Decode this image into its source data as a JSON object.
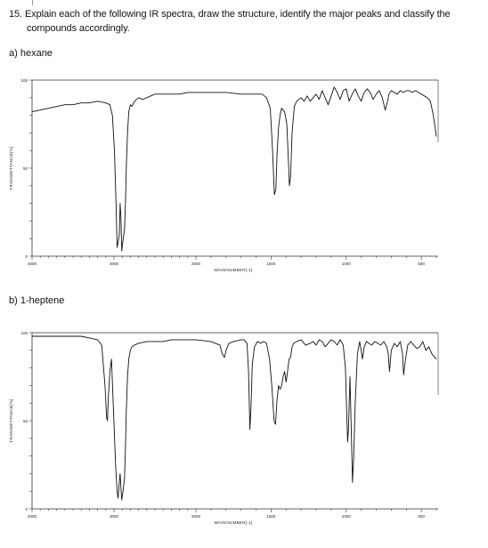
{
  "question": {
    "line1": "15. Explain each of the following IR spectra, draw the structure, identify the major peaks and classify the",
    "line2": "compounds accordingly."
  },
  "parts": [
    {
      "label": "a)   hexane",
      "chart_data": {
        "type": "line",
        "title": "",
        "xlabel": "WAVENUMBER[-1]",
        "ylabel": "TRANSMITTANCE[%]",
        "xlim": [
          4000,
          400
        ],
        "ylim": [
          0,
          100
        ],
        "x_ticks": [
          "4000",
          "3000",
          "2000",
          "1500",
          "1000",
          "500"
        ],
        "y_ticks": [
          "100",
          "50",
          "0"
        ],
        "x": [
          4000,
          3900,
          3800,
          3700,
          3600,
          3500,
          3400,
          3300,
          3200,
          3100,
          3050,
          3020,
          2995,
          2975,
          2962,
          2950,
          2935,
          2925,
          2915,
          2905,
          2890,
          2872,
          2860,
          2850,
          2835,
          2820,
          2800,
          2780,
          2750,
          2700,
          2650,
          2600,
          2550,
          2500,
          2400,
          2300,
          2200,
          2100,
          2000,
          1900,
          1800,
          1700,
          1650,
          1600,
          1560,
          1530,
          1505,
          1490,
          1478,
          1468,
          1460,
          1450,
          1440,
          1430,
          1410,
          1395,
          1385,
          1378,
          1370,
          1360,
          1345,
          1330,
          1300,
          1280,
          1260,
          1240,
          1220,
          1200,
          1180,
          1160,
          1140,
          1120,
          1100,
          1080,
          1060,
          1040,
          1020,
          1000,
          980,
          960,
          940,
          920,
          900,
          880,
          860,
          840,
          820,
          800,
          780,
          760,
          740,
          725,
          715,
          700,
          680,
          660,
          640,
          620,
          600,
          580,
          560,
          540,
          520,
          500,
          480,
          460,
          440,
          420,
          400
        ],
        "y": [
          82,
          83,
          84,
          85,
          86,
          86,
          87,
          87,
          88,
          87,
          86,
          80,
          60,
          30,
          5,
          8,
          12,
          30,
          22,
          3,
          9,
          15,
          30,
          50,
          70,
          82,
          86,
          85,
          88,
          90,
          89,
          90,
          91,
          92,
          92,
          92,
          92,
          93,
          93,
          93,
          93,
          92,
          92,
          92,
          92,
          90,
          84,
          60,
          35,
          38,
          58,
          73,
          80,
          84,
          82,
          75,
          55,
          40,
          45,
          70,
          85,
          88,
          90,
          88,
          91,
          88,
          90,
          92,
          89,
          94,
          90,
          86,
          91,
          96,
          93,
          89,
          94,
          95,
          88,
          92,
          95,
          91,
          88,
          93,
          95,
          93,
          89,
          92,
          94,
          90,
          83,
          88,
          92,
          94,
          93,
          92,
          94,
          93,
          94,
          94,
          93,
          94,
          93,
          92,
          91,
          90,
          88,
          80,
          68
        ]
      }
    },
    {
      "label": "b)   1-heptene",
      "chart_data": {
        "type": "line",
        "title": "",
        "xlabel": "WAVENUMBER[-1]",
        "ylabel": "TRANSMITTANCE[%]",
        "xlim": [
          4000,
          400
        ],
        "ylim": [
          0,
          100
        ],
        "x_ticks": [
          "4000",
          "3000",
          "2000",
          "1500",
          "1000",
          "500"
        ],
        "y_ticks": [
          "100",
          "50",
          "0"
        ],
        "x": [
          4000,
          3900,
          3800,
          3700,
          3600,
          3500,
          3400,
          3300,
          3200,
          3150,
          3110,
          3090,
          3079,
          3070,
          3050,
          3030,
          3010,
          2995,
          2980,
          2962,
          2950,
          2935,
          2925,
          2915,
          2905,
          2890,
          2872,
          2860,
          2850,
          2835,
          2820,
          2800,
          2780,
          2750,
          2700,
          2600,
          2500,
          2400,
          2300,
          2200,
          2100,
          2000,
          1900,
          1840,
          1825,
          1810,
          1800,
          1780,
          1750,
          1700,
          1680,
          1660,
          1650,
          1641,
          1633,
          1625,
          1610,
          1590,
          1570,
          1550,
          1530,
          1510,
          1495,
          1480,
          1470,
          1460,
          1450,
          1440,
          1430,
          1420,
          1410,
          1400,
          1390,
          1380,
          1370,
          1360,
          1350,
          1330,
          1300,
          1270,
          1240,
          1220,
          1200,
          1180,
          1160,
          1140,
          1120,
          1100,
          1080,
          1060,
          1040,
          1020,
          1005,
          995,
          990,
          985,
          975,
          965,
          958,
          950,
          940,
          925,
          910,
          900,
          892,
          880,
          865,
          850,
          830,
          810,
          790,
          770,
          750,
          730,
          720,
          712,
          700,
          680,
          660,
          640,
          625,
          618,
          605,
          590,
          570,
          550,
          530,
          510,
          490,
          470,
          450,
          430,
          400
        ],
        "y": [
          98,
          98,
          98,
          98,
          98,
          98,
          98,
          97,
          96,
          93,
          70,
          52,
          50,
          63,
          78,
          85,
          60,
          42,
          25,
          10,
          6,
          15,
          20,
          12,
          5,
          10,
          17,
          35,
          55,
          75,
          85,
          90,
          92,
          93,
          94,
          95,
          95,
          95,
          96,
          96,
          96,
          96,
          95,
          93,
          88,
          86,
          90,
          94,
          95,
          96,
          96,
          94,
          78,
          45,
          58,
          82,
          92,
          95,
          94,
          95,
          94,
          85,
          70,
          50,
          48,
          62,
          70,
          68,
          70,
          75,
          78,
          72,
          78,
          85,
          86,
          92,
          94,
          95,
          96,
          93,
          94,
          95,
          93,
          96,
          95,
          92,
          94,
          96,
          95,
          93,
          96,
          93,
          80,
          50,
          38,
          45,
          75,
          40,
          15,
          30,
          60,
          88,
          95,
          90,
          85,
          92,
          95,
          94,
          93,
          95,
          94,
          93,
          95,
          92,
          88,
          78,
          90,
          94,
          92,
          95,
          88,
          76,
          85,
          93,
          95,
          93,
          91,
          92,
          95,
          90,
          92,
          88,
          85
        ]
      }
    }
  ]
}
